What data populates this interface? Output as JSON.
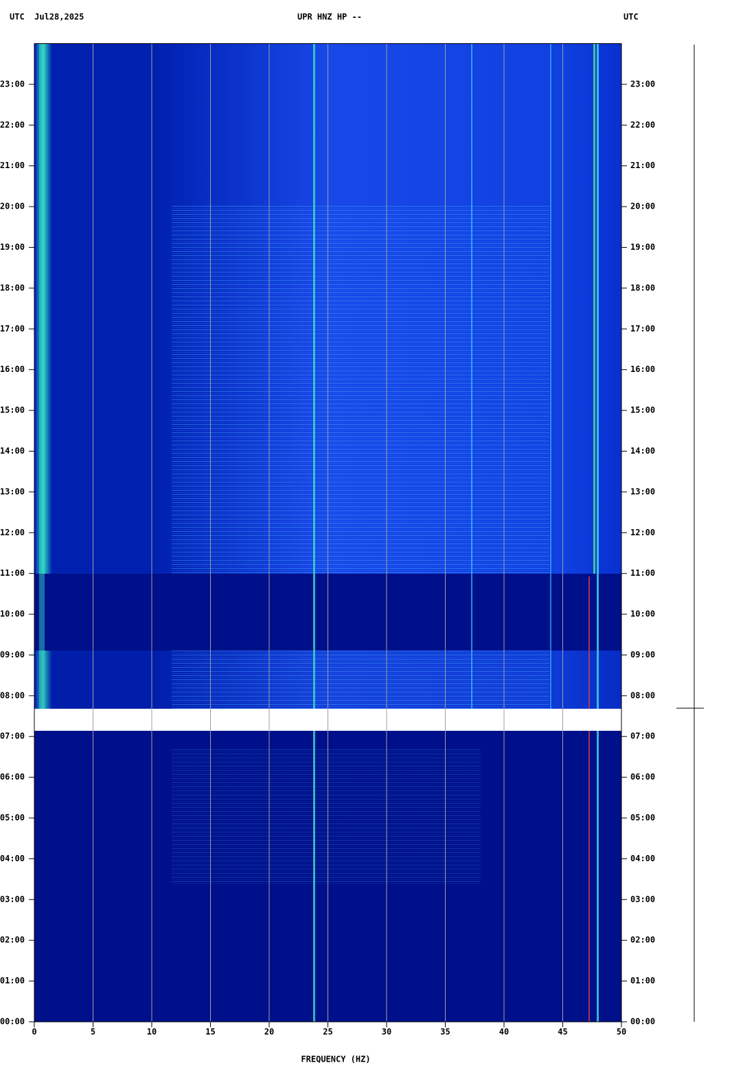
{
  "chart_data": {
    "type": "spectrogram",
    "title": "UPR HNZ HP --",
    "date_label": "UTC  Jul28,2025",
    "right_label": "UTC",
    "x_label": "FREQUENCY (HZ)",
    "xlim": [
      0,
      50
    ],
    "xticks": [
      0,
      5,
      10,
      15,
      20,
      25,
      30,
      35,
      40,
      45,
      50
    ],
    "ylim": [
      0,
      24
    ],
    "yticks": [
      {
        "value": 0,
        "label": "00:00"
      },
      {
        "value": 1,
        "label": "01:00"
      },
      {
        "value": 2,
        "label": "02:00"
      },
      {
        "value": 3,
        "label": "03:00"
      },
      {
        "value": 4,
        "label": "04:00"
      },
      {
        "value": 5,
        "label": "05:00"
      },
      {
        "value": 6,
        "label": "06:00"
      },
      {
        "value": 7,
        "label": "07:00"
      },
      {
        "value": 8,
        "label": "08:00"
      },
      {
        "value": 9,
        "label": "09:00"
      },
      {
        "value": 10,
        "label": "10:00"
      },
      {
        "value": 11,
        "label": "11:00"
      },
      {
        "value": 12,
        "label": "12:00"
      },
      {
        "value": 13,
        "label": "13:00"
      },
      {
        "value": 14,
        "label": "14:00"
      },
      {
        "value": 15,
        "label": "15:00"
      },
      {
        "value": 16,
        "label": "16:00"
      },
      {
        "value": 17,
        "label": "17:00"
      },
      {
        "value": 18,
        "label": "18:00"
      },
      {
        "value": 19,
        "label": "19:00"
      },
      {
        "value": 20,
        "label": "20:00"
      },
      {
        "value": 21,
        "label": "21:00"
      },
      {
        "value": 22,
        "label": "22:00"
      },
      {
        "value": 23,
        "label": "23:00"
      }
    ],
    "data_gap": [
      7.14,
      7.68
    ],
    "grid": true
  }
}
